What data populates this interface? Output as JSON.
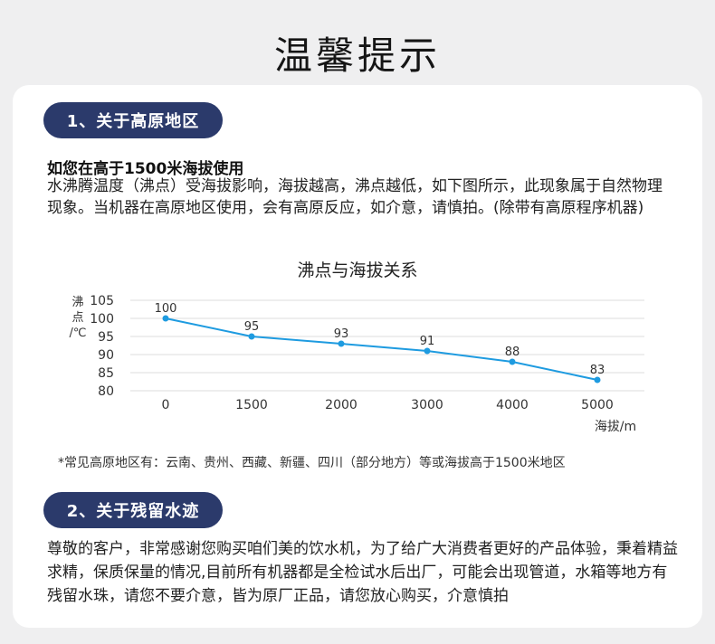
{
  "page": {
    "title": "温馨提示"
  },
  "section1": {
    "pill": "1、关于高原地区",
    "subhead": "如您在高于1500米海拔使用",
    "paragraph": "水沸腾温度（沸点）受海拔影响，海拔越高，沸点越低，如下图所示，此现象属于自然物理现象。当机器在高原地区使用，会有高原反应，如介意，请慎拍。(除带有高原程序机器)",
    "footnote": "*常见高原地区有：云南、贵州、西藏、新疆、四川（部分地方）等或海拔高于1500米地区"
  },
  "section2": {
    "pill": "2、关于残留水迹",
    "paragraph": "尊敬的客户，非常感谢您购买咱们美的饮水机，为了给广大消费者更好的产品体验，秉着精益求精，保质保量的情况,目前所有机器都是全检试水后出厂，可能会出现管道，水箱等地方有残留水珠，请您不要介意，皆为原厂正品，请您放心购买，介意慎拍"
  },
  "chart_data": {
    "type": "line",
    "title": "沸点与海拔关系",
    "ylabel": "沸点/℃",
    "xlabel": "海拔/m",
    "x": [
      "0",
      "1500",
      "2000",
      "3000",
      "4000",
      "5000"
    ],
    "values": [
      100,
      95,
      93,
      91,
      88,
      83
    ],
    "data_labels": [
      "100",
      "95",
      "93",
      "91",
      "88",
      "83"
    ],
    "yticks": [
      "105",
      "100",
      "95",
      "90",
      "85",
      "80"
    ],
    "ylim": [
      80,
      105
    ],
    "grid": true,
    "color": "#1e9be0"
  }
}
